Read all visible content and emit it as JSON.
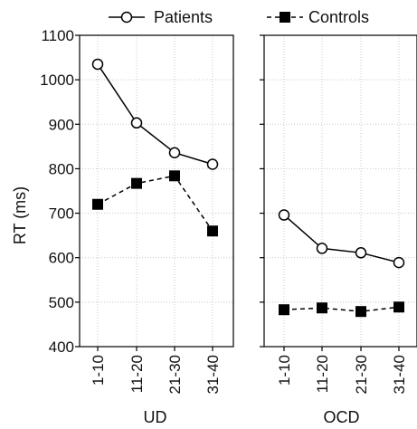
{
  "chart_data": {
    "type": "line",
    "ylabel": "RT (ms)",
    "ylim": [
      400,
      1100
    ],
    "yticks": [
      "400",
      "500",
      "600",
      "700",
      "800",
      "900",
      "1000",
      "1100"
    ],
    "categories": [
      "1-10",
      "11-20",
      "21-30",
      "31-40"
    ],
    "legend": {
      "position": "top",
      "items": [
        "Patients",
        "Controls"
      ]
    },
    "grid": true,
    "panels": [
      {
        "xlabel": "UD",
        "series": [
          {
            "name": "Patients",
            "marker": "open-circle",
            "line": "solid",
            "values": [
              1035,
              903,
              836,
              810
            ]
          },
          {
            "name": "Controls",
            "marker": "filled-square",
            "line": "dashed",
            "values": [
              720,
              767,
              784,
              660
            ]
          }
        ]
      },
      {
        "xlabel": "OCD",
        "series": [
          {
            "name": "Patients",
            "marker": "open-circle",
            "line": "solid",
            "values": [
              696,
              621,
              611,
              589
            ]
          },
          {
            "name": "Controls",
            "marker": "filled-square",
            "line": "dashed",
            "values": [
              483,
              487,
              479,
              489
            ]
          }
        ]
      }
    ]
  }
}
